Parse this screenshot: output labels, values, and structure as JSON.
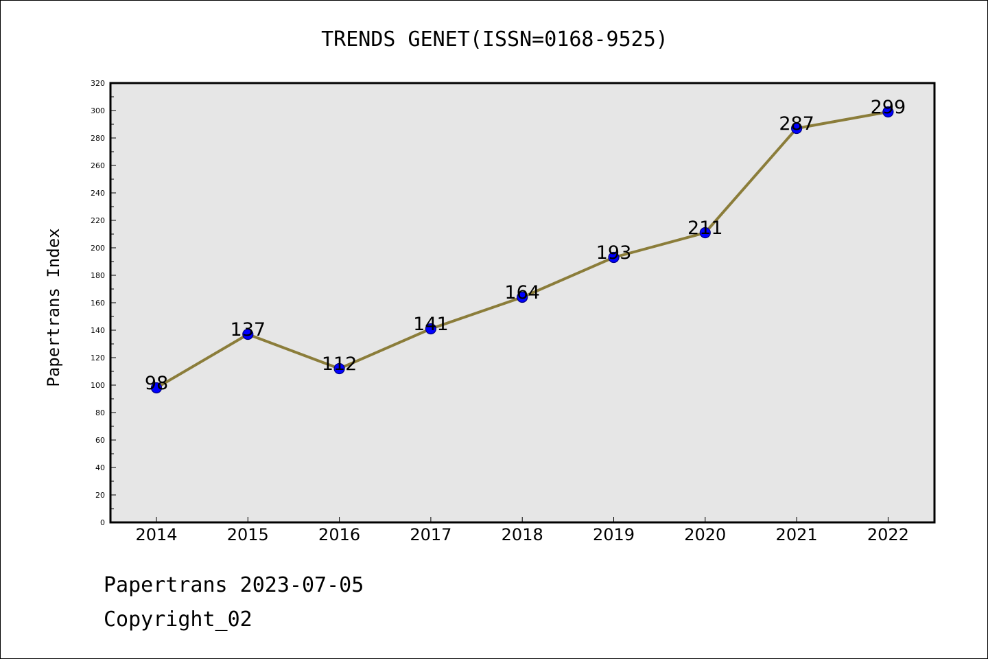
{
  "chart_data": {
    "type": "line",
    "title": "TRENDS GENET(ISSN=0168-9525)",
    "xlabel": "",
    "ylabel": "Papertrans Index",
    "categories": [
      "2014",
      "2015",
      "2016",
      "2017",
      "2018",
      "2019",
      "2020",
      "2021",
      "2022"
    ],
    "series": [
      {
        "values": [
          98,
          137,
          112,
          141,
          164,
          193,
          211,
          287,
          299
        ]
      }
    ],
    "ylim": [
      0,
      320
    ],
    "yticks": [
      0,
      20,
      40,
      60,
      80,
      100,
      120,
      140,
      160,
      180,
      200,
      220,
      240,
      260,
      280,
      300,
      320
    ],
    "grid": false,
    "data_labels": true,
    "colors": {
      "line": "#8b7d3a",
      "marker_fill": "#0000ff",
      "marker_edge": "#000080",
      "plot_background": "#e6e6e6"
    }
  },
  "footer": {
    "date_text": "Papertrans 2023-07-05",
    "copyright_text": "Copyright_02"
  }
}
